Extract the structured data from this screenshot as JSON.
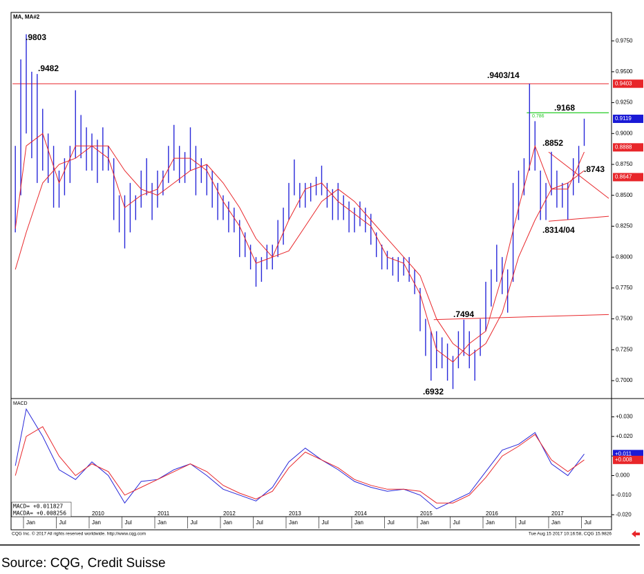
{
  "chart_data": {
    "type": "ohlc",
    "title": "MA, MA#2",
    "color": "#2626d9",
    "x": [
      "2008-11",
      "2008-12",
      "2009-01",
      "2009-02",
      "2009-03",
      "2009-04",
      "2009-05",
      "2009-06",
      "2009-07",
      "2009-08",
      "2009-09",
      "2009-10",
      "2009-11",
      "2009-12",
      "2010-01",
      "2010-02",
      "2010-03",
      "2010-04",
      "2010-05",
      "2010-06",
      "2010-07",
      "2010-08",
      "2010-09",
      "2010-10",
      "2010-11",
      "2010-12",
      "2011-01",
      "2011-02",
      "2011-03",
      "2011-04",
      "2011-05",
      "2011-06",
      "2011-07",
      "2011-08",
      "2011-09",
      "2011-10",
      "2011-11",
      "2011-12",
      "2012-01",
      "2012-02",
      "2012-03",
      "2012-04",
      "2012-05",
      "2012-06",
      "2012-07",
      "2012-08",
      "2012-09",
      "2012-10",
      "2012-11",
      "2012-12",
      "2013-01",
      "2013-02",
      "2013-03",
      "2013-04",
      "2013-05",
      "2013-06",
      "2013-07",
      "2013-08",
      "2013-09",
      "2013-10",
      "2013-11",
      "2013-12",
      "2014-01",
      "2014-02",
      "2014-03",
      "2014-04",
      "2014-05",
      "2014-06",
      "2014-07",
      "2014-08",
      "2014-09",
      "2014-10",
      "2014-11",
      "2014-12",
      "2015-01",
      "2015-02",
      "2015-03",
      "2015-04",
      "2015-05",
      "2015-06",
      "2015-07",
      "2015-08",
      "2015-09",
      "2015-10",
      "2015-11",
      "2015-12",
      "2016-01",
      "2016-02",
      "2016-03",
      "2016-04",
      "2016-05",
      "2016-06",
      "2016-07",
      "2016-08",
      "2016-09",
      "2016-10",
      "2016-11",
      "2016-12",
      "2017-01",
      "2017-02",
      "2017-03",
      "2017-04",
      "2017-05",
      "2017-06",
      "2017-07"
    ],
    "high": [
      0.89,
      0.96,
      0.9803,
      0.95,
      0.9482,
      0.92,
      0.9,
      0.89,
      0.87,
      0.88,
      0.89,
      0.935,
      0.915,
      0.905,
      0.9,
      0.895,
      0.905,
      0.89,
      0.88,
      0.85,
      0.85,
      0.86,
      0.85,
      0.87,
      0.88,
      0.86,
      0.87,
      0.87,
      0.89,
      0.907,
      0.89,
      0.885,
      0.905,
      0.89,
      0.88,
      0.875,
      0.87,
      0.86,
      0.85,
      0.845,
      0.84,
      0.83,
      0.82,
      0.81,
      0.8,
      0.8,
      0.81,
      0.81,
      0.83,
      0.84,
      0.86,
      0.879,
      0.86,
      0.86,
      0.86,
      0.865,
      0.874,
      0.86,
      0.855,
      0.86,
      0.85,
      0.845,
      0.84,
      0.845,
      0.84,
      0.835,
      0.82,
      0.81,
      0.805,
      0.8,
      0.8,
      0.8,
      0.8,
      0.79,
      0.775,
      0.75,
      0.74,
      0.74,
      0.735,
      0.73,
      0.72,
      0.74,
      0.7494,
      0.74,
      0.725,
      0.75,
      0.78,
      0.79,
      0.81,
      0.8,
      0.79,
      0.86,
      0.87,
      0.88,
      0.9403,
      0.91,
      0.87,
      0.86,
      0.8852,
      0.87,
      0.86,
      0.86,
      0.88,
      0.89,
      0.912
    ],
    "low": [
      0.82,
      0.85,
      0.9,
      0.88,
      0.86,
      0.87,
      0.86,
      0.84,
      0.84,
      0.85,
      0.86,
      0.88,
      0.88,
      0.87,
      0.87,
      0.86,
      0.87,
      0.87,
      0.83,
      0.82,
      0.807,
      0.82,
      0.83,
      0.84,
      0.85,
      0.83,
      0.84,
      0.85,
      0.86,
      0.87,
      0.86,
      0.86,
      0.87,
      0.85,
      0.86,
      0.85,
      0.84,
      0.83,
      0.83,
      0.82,
      0.82,
      0.8,
      0.8,
      0.79,
      0.776,
      0.78,
      0.79,
      0.79,
      0.8,
      0.81,
      0.83,
      0.85,
      0.84,
      0.84,
      0.845,
      0.85,
      0.85,
      0.84,
      0.83,
      0.83,
      0.83,
      0.82,
      0.82,
      0.825,
      0.82,
      0.81,
      0.8,
      0.79,
      0.79,
      0.785,
      0.78,
      0.785,
      0.78,
      0.77,
      0.74,
      0.72,
      0.7,
      0.71,
      0.71,
      0.7,
      0.6932,
      0.71,
      0.72,
      0.71,
      0.7,
      0.72,
      0.74,
      0.76,
      0.78,
      0.77,
      0.755,
      0.78,
      0.83,
      0.85,
      0.87,
      0.87,
      0.83,
      0.83,
      0.85,
      0.84,
      0.84,
      0.8304,
      0.85,
      0.86,
      0.89
    ],
    "ylim": [
      0.6855,
      0.998
    ],
    "yticks": [
      {
        "value": 0.7,
        "label": "0.7000"
      },
      {
        "value": 0.725,
        "label": "0.7250"
      },
      {
        "value": 0.75,
        "label": "0.7500"
      },
      {
        "value": 0.775,
        "label": "0.7750"
      },
      {
        "value": 0.8,
        "label": "0.8000"
      },
      {
        "value": 0.825,
        "label": "0.8250"
      },
      {
        "value": 0.85,
        "label": "0.8500"
      },
      {
        "value": 0.875,
        "label": "0.8750"
      },
      {
        "value": 0.9,
        "label": "0.9000"
      },
      {
        "value": 0.925,
        "label": "0.9250"
      },
      {
        "value": 0.95,
        "label": "0.9500"
      },
      {
        "value": 0.975,
        "label": "0.9750"
      }
    ],
    "ma_x": [
      "2008-11",
      "2009-01",
      "2009-04",
      "2009-07",
      "2009-10",
      "2010-01",
      "2010-04",
      "2010-07",
      "2010-10",
      "2011-01",
      "2011-04",
      "2011-07",
      "2011-10",
      "2012-01",
      "2012-04",
      "2012-07",
      "2012-10",
      "2013-01",
      "2013-04",
      "2013-07",
      "2013-10",
      "2014-01",
      "2014-04",
      "2014-07",
      "2014-10",
      "2015-01",
      "2015-04",
      "2015-07",
      "2015-10",
      "2016-01",
      "2016-04",
      "2016-07",
      "2016-10",
      "2017-01",
      "2017-04",
      "2017-07"
    ],
    "ma": [
      {
        "color": "#e8262a",
        "values": [
          0.823,
          0.89,
          0.9,
          0.86,
          0.89,
          0.89,
          0.88,
          0.84,
          0.85,
          0.855,
          0.88,
          0.88,
          0.87,
          0.845,
          0.825,
          0.795,
          0.8,
          0.83,
          0.855,
          0.86,
          0.845,
          0.835,
          0.825,
          0.8,
          0.795,
          0.77,
          0.725,
          0.715,
          0.73,
          0.74,
          0.785,
          0.84,
          0.89,
          0.855,
          0.855,
          0.885
        ]
      },
      {
        "color": "#e8262a",
        "values": [
          0.79,
          0.82,
          0.86,
          0.875,
          0.88,
          0.89,
          0.89,
          0.87,
          0.855,
          0.85,
          0.86,
          0.87,
          0.875,
          0.86,
          0.84,
          0.815,
          0.8,
          0.805,
          0.825,
          0.845,
          0.855,
          0.845,
          0.83,
          0.815,
          0.8,
          0.785,
          0.75,
          0.73,
          0.72,
          0.73,
          0.755,
          0.8,
          0.83,
          0.855,
          0.86,
          0.87
        ]
      }
    ],
    "lines": [
      {
        "color": "#e8262a",
        "x": [
          "2008-11",
          "2017-12"
        ],
        "values": [
          0.9403,
          0.9403
        ]
      },
      {
        "color": "#22cc22",
        "x": [
          "2016-09",
          "2017-12"
        ],
        "values": [
          0.9168,
          0.9168
        ]
      },
      {
        "color": "#e8262a",
        "x": [
          "2015-04",
          "2017-12"
        ],
        "values": [
          0.7494,
          0.7535
        ]
      },
      {
        "color": "#e8262a",
        "x": [
          "2017-01",
          "2017-12"
        ],
        "values": [
          0.885,
          0.8475
        ]
      },
      {
        "color": "#e8262a",
        "x": [
          "2017-01",
          "2017-12"
        ],
        "values": [
          0.829,
          0.833
        ]
      }
    ],
    "markers": [
      {
        "value": 0.9403,
        "label": "0.9403",
        "color": "#e8262a"
      },
      {
        "value": 0.9119,
        "label": "0.9119",
        "color": "#1a1ad6"
      },
      {
        "value": 0.8888,
        "label": "0.8888",
        "color": "#e8262a"
      },
      {
        "value": 0.8647,
        "label": "0.8647",
        "color": "#e8262a"
      }
    ],
    "annotations": [
      ".9803",
      ".9482",
      ".9403/14",
      ".9168",
      "0.786",
      ".8852",
      ".8743",
      ".8314/04",
      ".7494",
      ".6932"
    ],
    "xticks": [
      {
        "value": "2009-01",
        "label": "Jan"
      },
      {
        "value": "2009-07",
        "label": "Jul"
      },
      {
        "value": "2010-01",
        "label": "Jan"
      },
      {
        "value": "2010-07",
        "label": "Jul"
      },
      {
        "value": "2011-01",
        "label": "Jan"
      },
      {
        "value": "2011-07",
        "label": "Jul"
      },
      {
        "value": "2012-01",
        "label": "Jan"
      },
      {
        "value": "2012-07",
        "label": "Jul"
      },
      {
        "value": "2013-01",
        "label": "Jan"
      },
      {
        "value": "2013-07",
        "label": "Jul"
      },
      {
        "value": "2014-01",
        "label": "Jan"
      },
      {
        "value": "2014-07",
        "label": "Jul"
      },
      {
        "value": "2015-01",
        "label": "Jan"
      },
      {
        "value": "2015-07",
        "label": "Jul"
      },
      {
        "value": "2016-01",
        "label": "Jan"
      },
      {
        "value": "2016-07",
        "label": "Jul"
      },
      {
        "value": "2017-01",
        "label": "Jan"
      },
      {
        "value": "2017-07",
        "label": "Jul"
      }
    ],
    "year_labels": [
      {
        "value": "2010-01",
        "label": "2010"
      },
      {
        "value": "2011-01",
        "label": "2011"
      },
      {
        "value": "2012-01",
        "label": "2012"
      },
      {
        "value": "2013-01",
        "label": "2013"
      },
      {
        "value": "2014-01",
        "label": "2014"
      },
      {
        "value": "2015-01",
        "label": "2015"
      },
      {
        "value": "2016-01",
        "label": "2016"
      },
      {
        "value": "2017-01",
        "label": "2017"
      }
    ],
    "macd": {
      "title": "MACD",
      "ylim": [
        -0.021,
        0.039
      ],
      "yticks": [
        {
          "value": 0.03,
          "label": "+0.030"
        },
        {
          "value": 0.02,
          "label": "+0.020"
        },
        {
          "value": 0.01,
          "label": "+0.010"
        },
        {
          "value": 0,
          "label": "0.000"
        },
        {
          "value": -0.01,
          "label": "-0.010"
        },
        {
          "value": -0.02,
          "label": "-0.020"
        }
      ],
      "series": [
        {
          "color": "#2626d9",
          "values": [
            0.005,
            0.034,
            0.02,
            0.003,
            -0.002,
            0.007,
            0.0,
            -0.014,
            -0.003,
            -0.002,
            0.003,
            0.006,
            0.0,
            -0.007,
            -0.01,
            -0.013,
            -0.006,
            0.007,
            0.014,
            0.008,
            0.003,
            -0.003,
            -0.006,
            -0.008,
            -0.007,
            -0.01,
            -0.017,
            -0.013,
            -0.009,
            0.002,
            0.013,
            0.016,
            0.022,
            0.006,
            0.0,
            0.011
          ]
        },
        {
          "color": "#e8262a",
          "values": [
            0.0,
            0.02,
            0.025,
            0.01,
            0.0,
            0.006,
            0.002,
            -0.01,
            -0.006,
            -0.002,
            0.002,
            0.006,
            0.002,
            -0.005,
            -0.009,
            -0.012,
            -0.008,
            0.004,
            0.012,
            0.008,
            0.004,
            -0.002,
            -0.005,
            -0.007,
            -0.007,
            -0.008,
            -0.014,
            -0.014,
            -0.01,
            -0.001,
            0.01,
            0.015,
            0.021,
            0.008,
            0.002,
            0.008
          ]
        }
      ],
      "markers": [
        {
          "value": 0.011,
          "label": "+0.011",
          "color": "#1a1ad6"
        },
        {
          "value": 0.008,
          "label": "+0.008",
          "color": "#e8262a"
        }
      ],
      "readout": [
        "MACD=  +0.011827",
        "MACDA= +0.008256"
      ]
    },
    "footer_left": "CQG Inc. © 2017 All rights reserved worldwide. http://www.cqg.com",
    "footer_right": "Tue Aug 15 2017 10:16:58, CQG 15.9826"
  },
  "source": "Source: CQG, Credit Suisse"
}
